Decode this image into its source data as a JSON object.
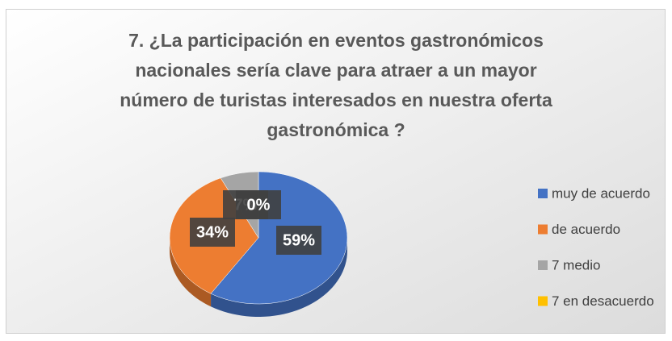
{
  "chart_data": {
    "type": "pie3d",
    "title": "7. ¿La participación en eventos gastronómicos nacionales sería clave para atraer a un mayor número de turistas interesados en nuestra oferta gastronómica ?",
    "categories": [
      "muy de acuerdo",
      "de acuerdo",
      "7 medio",
      "7 en desacuerdo"
    ],
    "values": [
      59,
      34,
      7,
      0
    ],
    "value_labels": [
      "59%",
      "34%",
      "7%",
      "0%"
    ],
    "colors": [
      "#4472c4",
      "#ed7d31",
      "#a5a5a5",
      "#ffc000"
    ],
    "legend": "right"
  }
}
